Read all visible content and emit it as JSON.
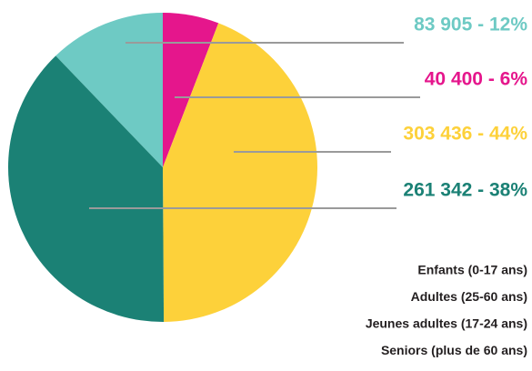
{
  "chart_data": {
    "type": "pie",
    "values": [
      83905,
      40400,
      303436,
      261342
    ],
    "value_labels": [
      "83 905 - 12%",
      "40 400 - 6%",
      "303 436 - 44%",
      "261 342 - 38%"
    ],
    "colors": [
      "#6ecac4",
      "#e5168c",
      "#fdd13a",
      "#1b8175"
    ],
    "legend": [
      "Enfants (0-17 ans)",
      "Adultes (25-60 ans)",
      "Jeunes adultes (17-24 ans)",
      "Seniors (plus de 60 ans)"
    ]
  }
}
